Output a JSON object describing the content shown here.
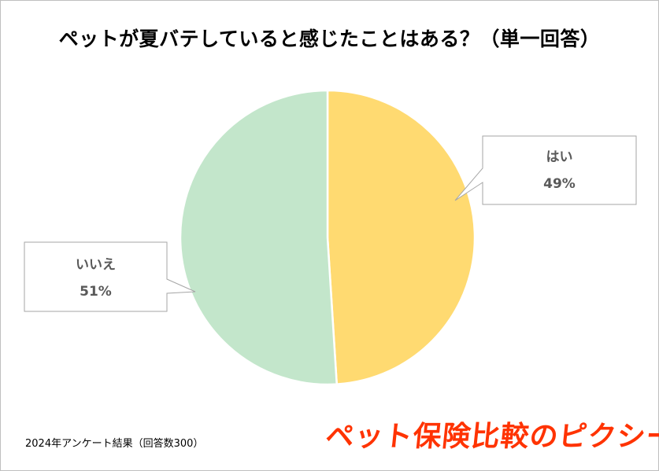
{
  "chart_data": {
    "type": "pie",
    "title": "ペットが夏バテしていると感じたことはある？（単一回答）",
    "slices": [
      {
        "label": "はい",
        "value": 49,
        "value_label": "49%",
        "color": "#FFDA71"
      },
      {
        "label": "いいえ",
        "value": 51,
        "value_label": "51%",
        "color": "#C3E6CB"
      }
    ],
    "start_angle_deg": 0,
    "direction": "clockwise",
    "legend": "none",
    "data_labels": "callouts"
  },
  "footer": {
    "note": "2024年アンケート結果（回答数300）",
    "brand": "ペット保険比較のピクシー"
  }
}
